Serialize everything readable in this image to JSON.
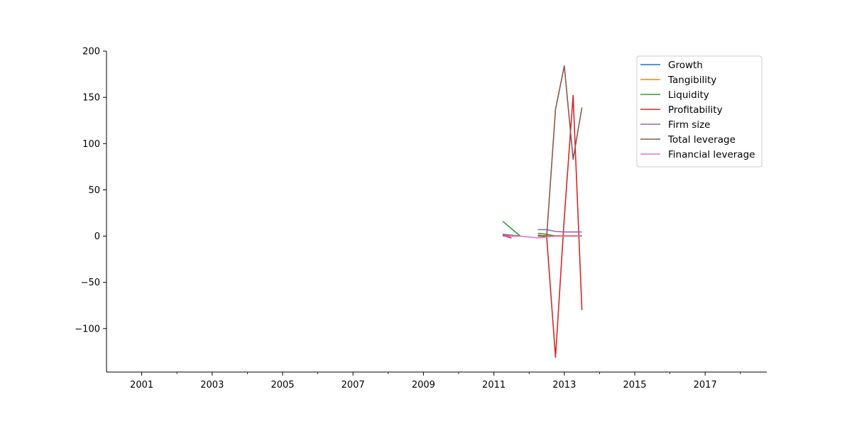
{
  "chart_data": {
    "type": "line",
    "title": "",
    "xlabel": "",
    "ylabel": "",
    "xlim": [
      2000.0,
      2018.75
    ],
    "ylim": [
      -147,
      200
    ],
    "x_major_ticks": [
      2001,
      2003,
      2005,
      2007,
      2009,
      2011,
      2013,
      2015,
      2017
    ],
    "x_minor_ticks": [
      2002,
      2004,
      2006,
      2008,
      2010,
      2012,
      2014,
      2016,
      2018
    ],
    "x_tick_labels": [
      "2001",
      "2003",
      "2005",
      "2007",
      "2009",
      "2011",
      "2013",
      "2015",
      "2017"
    ],
    "y_ticks": [
      -100,
      -50,
      0,
      50,
      100,
      150,
      200
    ],
    "y_tick_labels": [
      "−100",
      "−50",
      "0",
      "50",
      "100",
      "150",
      "200"
    ],
    "grid": false,
    "legend_position": "top-right",
    "series": [
      {
        "name": "Growth",
        "color": "#1f77b4",
        "segments": [
          [
            [
              2011.25,
              1.0
            ],
            [
              2011.5,
              0.0
            ],
            [
              2011.75,
              0.0
            ]
          ],
          [
            [
              2012.25,
              1.0
            ],
            [
              2012.5,
              0.0
            ],
            [
              2012.75,
              0.0
            ],
            [
              2013.0,
              0.0
            ],
            [
              2013.25,
              0.0
            ],
            [
              2013.5,
              0.0
            ]
          ]
        ]
      },
      {
        "name": "Tangibility",
        "color": "#ff7f0e",
        "segments": [
          [
            [
              2011.25,
              0.5
            ],
            [
              2011.5,
              0.5
            ],
            [
              2011.75,
              0.5
            ]
          ],
          [
            [
              2012.25,
              0.5
            ],
            [
              2012.5,
              0.5
            ],
            [
              2012.75,
              0.5
            ],
            [
              2013.0,
              0.5
            ],
            [
              2013.25,
              0.5
            ],
            [
              2013.5,
              0.5
            ]
          ]
        ]
      },
      {
        "name": "Liquidity",
        "color": "#2ca02c",
        "segments": [
          [
            [
              2011.25,
              16.0
            ],
            [
              2011.5,
              8.0
            ],
            [
              2011.75,
              0.0
            ]
          ],
          [
            [
              2012.25,
              3.0
            ],
            [
              2012.5,
              2.0
            ],
            [
              2012.75,
              0.0
            ],
            [
              2013.0,
              0.0
            ],
            [
              2013.25,
              0.0
            ],
            [
              2013.5,
              0.0
            ]
          ]
        ]
      },
      {
        "name": "Profitability",
        "color": "#d62728",
        "segments": [
          [
            [
              2011.25,
              0.5
            ],
            [
              2011.5,
              -2.0
            ]
          ],
          [
            [
              2012.25,
              0.5
            ],
            [
              2012.5,
              -1.0
            ],
            [
              2012.75,
              -131.0
            ],
            [
              2013.0,
              20.0
            ],
            [
              2013.25,
              152.0
            ],
            [
              2013.5,
              -80.0
            ]
          ]
        ]
      },
      {
        "name": "Firm size",
        "color": "#9467bd",
        "segments": [
          [
            [
              2011.25,
              2.0
            ],
            [
              2011.5,
              1.0
            ],
            [
              2011.75,
              0.0
            ]
          ],
          [
            [
              2012.25,
              7.0
            ],
            [
              2012.5,
              7.0
            ],
            [
              2012.75,
              5.0
            ],
            [
              2013.0,
              4.5
            ],
            [
              2013.25,
              4.5
            ],
            [
              2013.5,
              4.5
            ]
          ]
        ]
      },
      {
        "name": "Total leverage",
        "color": "#8c564b",
        "segments": [
          [
            [
              2011.25,
              1.0
            ],
            [
              2011.5,
              0.0
            ],
            [
              2011.75,
              0.0
            ]
          ],
          [
            [
              2012.25,
              0.0
            ],
            [
              2012.5,
              0.0
            ],
            [
              2012.75,
              137.0
            ],
            [
              2013.0,
              184.0
            ],
            [
              2013.25,
              83.0
            ],
            [
              2013.5,
              139.0
            ]
          ]
        ]
      },
      {
        "name": "Financial leverage",
        "color": "#e377c2",
        "segments": [
          [
            [
              2011.25,
              0.0
            ],
            [
              2011.5,
              0.0
            ],
            [
              2011.75,
              0.0
            ],
            [
              2012.0,
              -1.0
            ],
            [
              2012.25,
              -2.0
            ],
            [
              2012.5,
              -1.0
            ],
            [
              2012.75,
              0.0
            ],
            [
              2013.0,
              0.0
            ],
            [
              2013.25,
              0.0
            ],
            [
              2013.5,
              0.0
            ]
          ]
        ]
      }
    ]
  }
}
